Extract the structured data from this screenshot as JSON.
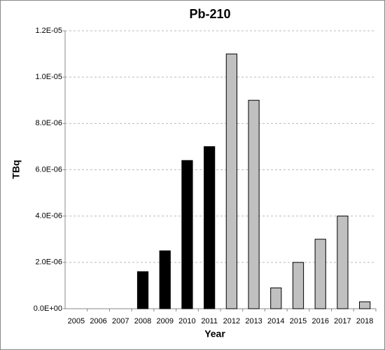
{
  "chart_data": {
    "type": "bar",
    "title": "Pb-210",
    "x_label": "Year",
    "y_label": "TBq",
    "categories": [
      "2005",
      "2006",
      "2007",
      "2008",
      "2009",
      "2010",
      "2011",
      "2012",
      "2013",
      "2014",
      "2015",
      "2016",
      "2017",
      "2018"
    ],
    "values": [
      0,
      0,
      0,
      1.6e-06,
      2.5e-06,
      6.4e-06,
      7e-06,
      1.1e-05,
      9e-06,
      9e-07,
      2e-06,
      3e-06,
      4e-06,
      3e-07
    ],
    "colors": [
      "#000000",
      "#000000",
      "#000000",
      "#000000",
      "#000000",
      "#000000",
      "#000000",
      "#c0c0c0",
      "#c0c0c0",
      "#c0c0c0",
      "#c0c0c0",
      "#c0c0c0",
      "#c0c0c0",
      "#c0c0c0"
    ],
    "ylim": [
      0,
      1.2e-05
    ],
    "yticks": [
      {
        "value": 0,
        "label": "0.0E+00"
      },
      {
        "value": 2e-06,
        "label": "2.0E-06"
      },
      {
        "value": 4e-06,
        "label": "4.0E-06"
      },
      {
        "value": 6e-06,
        "label": "6.0E-06"
      },
      {
        "value": 8e-06,
        "label": "8.0E-06"
      },
      {
        "value": 1e-05,
        "label": "1.0E-05"
      },
      {
        "value": 1.2e-05,
        "label": "1.2E-05"
      }
    ],
    "grid": true
  }
}
